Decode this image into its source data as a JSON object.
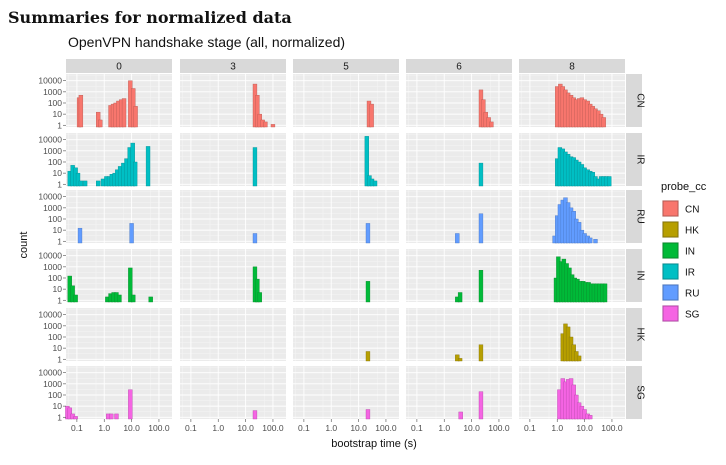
{
  "heading": "Summaries for normalized data",
  "chart_data": {
    "type": "bar",
    "title": "OpenVPN handshake stage (all, normalized)",
    "xlabel": "bootstrap time (s)",
    "ylabel": "count",
    "x_scale": "log10",
    "y_scale": "log10",
    "xlim": [
      0.04,
      300
    ],
    "ylim": [
      0.7,
      40000
    ],
    "x_ticks": [
      {
        "value": 0.1,
        "label": "0.1"
      },
      {
        "value": 1,
        "label": "1.0"
      },
      {
        "value": 10,
        "label": "10.0"
      },
      {
        "value": 100,
        "label": "100.0"
      }
    ],
    "y_ticks": [
      {
        "value": 1,
        "label": "1"
      },
      {
        "value": 10,
        "label": "10"
      },
      {
        "value": 100,
        "label": "100"
      },
      {
        "value": 1000,
        "label": "1000"
      },
      {
        "value": 10000,
        "label": "10000"
      }
    ],
    "grid": true,
    "legend": {
      "title": "probe_cc",
      "position": "right"
    },
    "columns": [
      "0",
      "3",
      "5",
      "6",
      "8"
    ],
    "rows": [
      "CN",
      "IR",
      "RU",
      "IN",
      "HK",
      "SG"
    ],
    "series": [
      {
        "name": "CN",
        "fill": "#F8766D",
        "border": "#B75A52"
      },
      {
        "name": "HK",
        "fill": "#B79F00",
        "border": "#85740A"
      },
      {
        "name": "IN",
        "fill": "#00BA38",
        "border": "#0A8A2D"
      },
      {
        "name": "IR",
        "fill": "#00BFC4",
        "border": "#078E92"
      },
      {
        "name": "RU",
        "fill": "#619CFF",
        "border": "#4A76C0"
      },
      {
        "name": "SG",
        "fill": "#F564E3",
        "border": "#B44AA8"
      }
    ],
    "panels": [
      {
        "row": "CN",
        "col": "0",
        "bars": [
          [
            0.12,
            300
          ],
          [
            0.14,
            500
          ],
          [
            0.6,
            15
          ],
          [
            0.72,
            3
          ],
          [
            1.7,
            60
          ],
          [
            2.1,
            80
          ],
          [
            2.6,
            100
          ],
          [
            3.3,
            150
          ],
          [
            4.2,
            200
          ],
          [
            5.3,
            250
          ],
          [
            9,
            10000
          ],
          [
            11.5,
            2000
          ],
          [
            14,
            50
          ]
        ]
      },
      {
        "row": "CN",
        "col": "3",
        "bars": [
          [
            22,
            5000
          ],
          [
            27,
            500
          ],
          [
            33,
            10
          ],
          [
            42,
            3
          ],
          [
            53,
            2
          ],
          [
            100,
            1.2
          ]
        ]
      },
      {
        "row": "CN",
        "col": "5",
        "bars": [
          [
            24,
            150
          ],
          [
            30,
            80
          ]
        ]
      },
      {
        "row": "CN",
        "col": "6",
        "bars": [
          [
            22,
            1500
          ],
          [
            27,
            200
          ],
          [
            33,
            15
          ],
          [
            42,
            5
          ],
          [
            53,
            2
          ]
        ]
      },
      {
        "row": "CN",
        "col": "8",
        "bars": [
          [
            1.0,
            3000
          ],
          [
            1.3,
            5000
          ],
          [
            1.6,
            3000
          ],
          [
            2.0,
            1500
          ],
          [
            2.5,
            800
          ],
          [
            3.2,
            500
          ],
          [
            4,
            300
          ],
          [
            5,
            200
          ],
          [
            6.3,
            250
          ],
          [
            8,
            300
          ],
          [
            10,
            200
          ],
          [
            13,
            150
          ],
          [
            16,
            80
          ],
          [
            20,
            50
          ],
          [
            25,
            30
          ],
          [
            32,
            20
          ],
          [
            40,
            10
          ],
          [
            50,
            5
          ]
        ]
      },
      {
        "row": "IR",
        "col": "0",
        "bars": [
          [
            0.055,
            15
          ],
          [
            0.07,
            50
          ],
          [
            0.09,
            30
          ],
          [
            0.11,
            10
          ],
          [
            0.14,
            2
          ],
          [
            0.2,
            2
          ],
          [
            0.6,
            2
          ],
          [
            0.9,
            3
          ],
          [
            1.2,
            5
          ],
          [
            1.5,
            5
          ],
          [
            1.9,
            8
          ],
          [
            2.4,
            10
          ],
          [
            3,
            20
          ],
          [
            3.8,
            40
          ],
          [
            5,
            80
          ],
          [
            6.5,
            200
          ],
          [
            8.5,
            2000
          ],
          [
            11,
            5000
          ],
          [
            13.5,
            100
          ],
          [
            40,
            2500
          ]
        ]
      },
      {
        "row": "IR",
        "col": "3",
        "bars": [
          [
            22,
            2000
          ]
        ]
      },
      {
        "row": "IR",
        "col": "5",
        "bars": [
          [
            20,
            20000
          ],
          [
            25,
            6
          ],
          [
            31,
            3
          ],
          [
            40,
            2
          ]
        ]
      },
      {
        "row": "IR",
        "col": "6",
        "bars": [
          [
            22,
            80
          ]
        ]
      },
      {
        "row": "IR",
        "col": "8",
        "bars": [
          [
            1.0,
            200
          ],
          [
            1.25,
            2000
          ],
          [
            1.6,
            1500
          ],
          [
            2.0,
            800
          ],
          [
            2.5,
            500
          ],
          [
            3.2,
            300
          ],
          [
            4,
            250
          ],
          [
            5,
            150
          ],
          [
            6.3,
            100
          ],
          [
            8,
            60
          ],
          [
            10,
            30
          ],
          [
            13,
            20
          ],
          [
            16,
            15
          ],
          [
            20,
            12
          ],
          [
            25,
            5
          ],
          [
            32,
            3
          ],
          [
            40,
            5
          ],
          [
            50,
            5
          ],
          [
            63,
            5
          ],
          [
            80,
            5
          ]
        ]
      },
      {
        "row": "RU",
        "col": "0",
        "bars": [
          [
            0.13,
            15
          ],
          [
            10,
            40
          ]
        ]
      },
      {
        "row": "RU",
        "col": "3",
        "bars": [
          [
            22,
            5
          ]
        ]
      },
      {
        "row": "RU",
        "col": "5",
        "bars": [
          [
            22,
            40
          ]
        ]
      },
      {
        "row": "RU",
        "col": "6",
        "bars": [
          [
            3,
            5
          ],
          [
            22,
            300
          ]
        ]
      },
      {
        "row": "RU",
        "col": "8",
        "bars": [
          [
            0.8,
            3
          ],
          [
            1.0,
            200
          ],
          [
            1.25,
            2000
          ],
          [
            1.6,
            5000
          ],
          [
            2.0,
            8000
          ],
          [
            2.5,
            3000
          ],
          [
            3.2,
            1000
          ],
          [
            4,
            500
          ],
          [
            5,
            100
          ],
          [
            6.3,
            50
          ],
          [
            8,
            10
          ],
          [
            10,
            5
          ],
          [
            13,
            3
          ],
          [
            16,
            2
          ],
          [
            25,
            1.5
          ]
        ]
      },
      {
        "row": "IN",
        "col": "0",
        "bars": [
          [
            0.055,
            150
          ],
          [
            0.07,
            20
          ],
          [
            0.09,
            3
          ],
          [
            1.3,
            2
          ],
          [
            1.7,
            4
          ],
          [
            2.2,
            5
          ],
          [
            2.8,
            5
          ],
          [
            3.6,
            3
          ],
          [
            9,
            800
          ],
          [
            11.5,
            3
          ],
          [
            50,
            2
          ]
        ]
      },
      {
        "row": "IN",
        "col": "3",
        "bars": [
          [
            22,
            1000
          ],
          [
            27,
            80
          ],
          [
            33,
            5
          ]
        ]
      },
      {
        "row": "IN",
        "col": "5",
        "bars": [
          [
            22,
            50
          ]
        ]
      },
      {
        "row": "IN",
        "col": "6",
        "bars": [
          [
            3,
            2
          ],
          [
            3.8,
            5
          ],
          [
            22,
            500
          ]
        ]
      },
      {
        "row": "IN",
        "col": "8",
        "bars": [
          [
            0.9,
            100
          ],
          [
            1.1,
            8000
          ],
          [
            1.4,
            3000
          ],
          [
            1.75,
            5000
          ],
          [
            2.2,
            2000
          ],
          [
            2.8,
            800
          ],
          [
            3.5,
            200
          ],
          [
            4.4,
            100
          ],
          [
            5.5,
            80
          ],
          [
            7,
            50
          ],
          [
            9,
            50
          ],
          [
            11,
            40
          ],
          [
            14,
            40
          ],
          [
            18,
            30
          ],
          [
            22,
            30
          ],
          [
            28,
            30
          ],
          [
            35,
            30
          ],
          [
            45,
            30
          ],
          [
            56,
            30
          ]
        ]
      },
      {
        "row": "HK",
        "col": "0",
        "bars": []
      },
      {
        "row": "HK",
        "col": "3",
        "bars": []
      },
      {
        "row": "HK",
        "col": "5",
        "bars": [
          [
            22,
            5
          ]
        ]
      },
      {
        "row": "HK",
        "col": "6",
        "bars": [
          [
            3,
            2.5
          ],
          [
            3.8,
            1.2
          ],
          [
            22,
            20
          ]
        ]
      },
      {
        "row": "HK",
        "col": "8",
        "bars": [
          [
            1.6,
            200
          ],
          [
            2.0,
            1500
          ],
          [
            2.5,
            800
          ],
          [
            3.2,
            100
          ],
          [
            4,
            20
          ],
          [
            5,
            5
          ],
          [
            6.3,
            2
          ]
        ]
      },
      {
        "row": "SG",
        "col": "0",
        "bars": [
          [
            0.045,
            10
          ],
          [
            0.055,
            7
          ],
          [
            0.07,
            2
          ],
          [
            0.09,
            1.2
          ],
          [
            1.4,
            2
          ],
          [
            1.8,
            2
          ],
          [
            2.8,
            2
          ],
          [
            9,
            300
          ]
        ]
      },
      {
        "row": "SG",
        "col": "3",
        "bars": [
          [
            22,
            4
          ]
        ]
      },
      {
        "row": "SG",
        "col": "5",
        "bars": [
          [
            22,
            5
          ]
        ]
      },
      {
        "row": "SG",
        "col": "6",
        "bars": [
          [
            4,
            3
          ],
          [
            22,
            200
          ]
        ]
      },
      {
        "row": "SG",
        "col": "8",
        "bars": [
          [
            1.2,
            300
          ],
          [
            1.6,
            3000
          ],
          [
            2.0,
            1500
          ],
          [
            2.5,
            2500
          ],
          [
            3.2,
            3000
          ],
          [
            4,
            800
          ],
          [
            5,
            100
          ],
          [
            6.3,
            20
          ],
          [
            8,
            10
          ],
          [
            10,
            5
          ],
          [
            13,
            2
          ],
          [
            16,
            1.5
          ]
        ]
      }
    ]
  }
}
